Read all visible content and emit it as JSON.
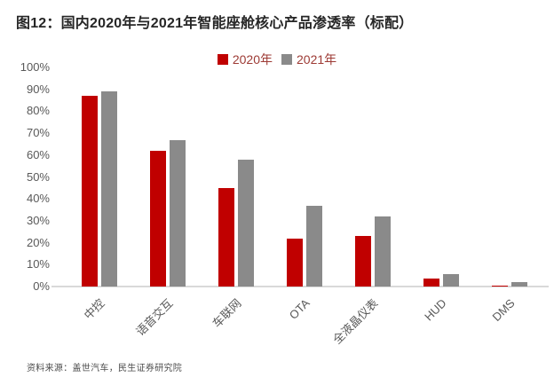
{
  "figure": {
    "title": "图12：国内2020年与2021年智能座舱核心产品渗透率（标配）",
    "source": "资料来源：盖世汽车，民生证券研究院"
  },
  "legend": [
    {
      "label": "2020年",
      "color": "#c00000"
    },
    {
      "label": "2021年",
      "color": "#8a8a8a"
    }
  ],
  "colors": {
    "series_2020": "#c00000",
    "series_2021": "#8a8a8a",
    "axis_line": "#d9d9d9",
    "tick_text": "#595959",
    "legend_text": "#9d3a34",
    "title_text": "#262626"
  },
  "chart_data": {
    "type": "bar",
    "title": "国内2020年与2021年智能座舱核心产品渗透率（标配）",
    "categories": [
      "中控",
      "语音交互",
      "车联网",
      "OTA",
      "全液晶仪表",
      "HUD",
      "DMS"
    ],
    "series": [
      {
        "name": "2020年",
        "color": "#c00000",
        "values": [
          87,
          62,
          45,
          22,
          23,
          3.5,
          0.5
        ]
      },
      {
        "name": "2021年",
        "color": "#8a8a8a",
        "values": [
          89,
          67,
          58,
          37,
          32,
          5.5,
          2
        ]
      }
    ],
    "xlabel": "",
    "ylabel": "",
    "ylim": [
      0,
      100
    ],
    "ytick_step": 10,
    "yticks": [
      "0%",
      "10%",
      "20%",
      "30%",
      "40%",
      "50%",
      "60%",
      "70%",
      "80%",
      "90%",
      "100%"
    ],
    "grid": false,
    "legend_position": "top-center"
  }
}
